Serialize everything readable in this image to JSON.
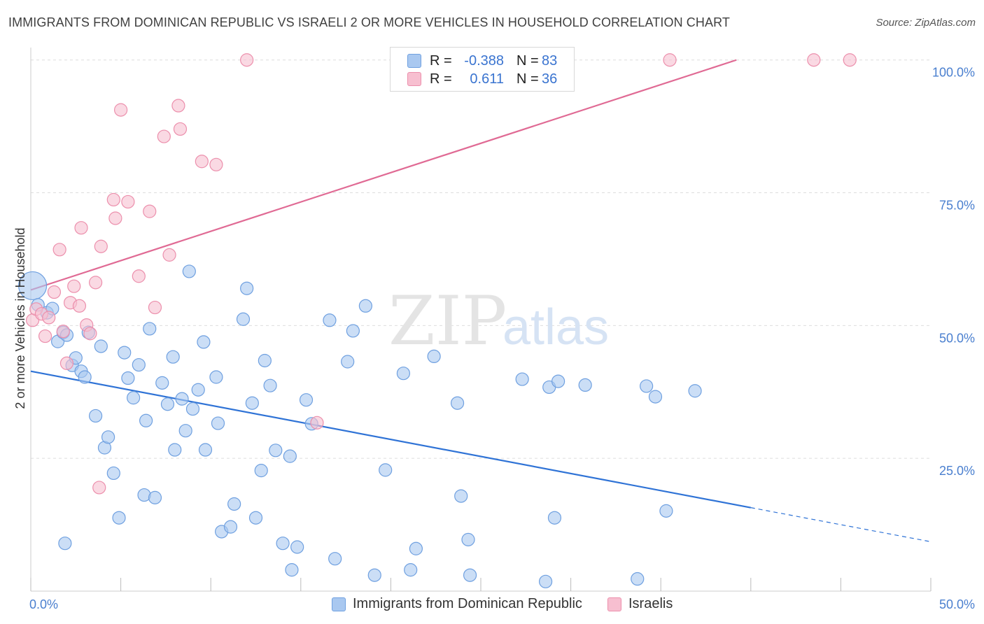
{
  "title": "IMMIGRANTS FROM DOMINICAN REPUBLIC VS ISRAELI 2 OR MORE VEHICLES IN HOUSEHOLD CORRELATION CHART",
  "source": "Source: ZipAtlas.com",
  "watermark": {
    "zip": "ZIP",
    "atlas": "atlas"
  },
  "legend": {
    "rows": [
      {
        "r_label": "R =",
        "r_value": "-0.388",
        "n_label": "N =",
        "n_value": "83",
        "color": "#a9c8f0",
        "border": "#6fa0e0"
      },
      {
        "r_label": "R =",
        "r_value": "0.611",
        "n_label": "N =",
        "n_value": "36",
        "color": "#f7bfd0",
        "border": "#ec8fac"
      }
    ]
  },
  "bottom_legend": [
    {
      "label": "Immigrants from Dominican Republic",
      "color": "#a9c8f0",
      "border": "#6fa0e0"
    },
    {
      "label": "Israelis",
      "color": "#f7bfd0",
      "border": "#ec8fac"
    }
  ],
  "chart_data": {
    "type": "scatter",
    "title": "IMMIGRANTS FROM DOMINICAN REPUBLIC VS ISRAELI 2 OR MORE VEHICLES IN HOUSEHOLD CORRELATION CHART",
    "xlabel": "",
    "ylabel": "2 or more Vehicles in Household",
    "xlim": [
      0,
      50
    ],
    "ylim": [
      0,
      100
    ],
    "x_tick_labels": [
      "0.0%",
      "50.0%"
    ],
    "y_tick_labels": [
      "100.0%",
      "75.0%",
      "50.0%",
      "25.0%"
    ],
    "y_tick_values": [
      100,
      75,
      50,
      25
    ],
    "grid": true,
    "legend_position": "top-center",
    "series": [
      {
        "name": "Immigrants from Dominican Republic",
        "color": "#6fa0e0",
        "fill": "#a9c8f0",
        "points": [
          [
            0.1,
            57.5
          ],
          [
            0.4,
            53.9
          ],
          [
            0.9,
            52.4
          ],
          [
            1.2,
            53.2
          ],
          [
            1.5,
            47.0
          ],
          [
            1.8,
            48.7
          ],
          [
            2.0,
            48.2
          ],
          [
            2.3,
            42.5
          ],
          [
            2.5,
            43.9
          ],
          [
            2.8,
            41.4
          ],
          [
            3.0,
            40.3
          ],
          [
            3.2,
            48.7
          ],
          [
            3.6,
            33.0
          ],
          [
            3.9,
            46.1
          ],
          [
            4.1,
            27.0
          ],
          [
            4.3,
            29.0
          ],
          [
            4.6,
            22.2
          ],
          [
            4.9,
            13.8
          ],
          [
            5.2,
            44.9
          ],
          [
            5.4,
            40.1
          ],
          [
            5.7,
            36.4
          ],
          [
            6.0,
            42.6
          ],
          [
            6.3,
            18.1
          ],
          [
            6.4,
            32.1
          ],
          [
            6.6,
            49.4
          ],
          [
            6.9,
            17.6
          ],
          [
            7.3,
            39.2
          ],
          [
            7.6,
            35.2
          ],
          [
            7.9,
            44.1
          ],
          [
            8.0,
            26.6
          ],
          [
            8.4,
            36.2
          ],
          [
            8.6,
            30.2
          ],
          [
            8.8,
            60.2
          ],
          [
            9.0,
            34.3
          ],
          [
            9.3,
            37.9
          ],
          [
            9.6,
            46.9
          ],
          [
            9.7,
            26.6
          ],
          [
            10.3,
            40.3
          ],
          [
            10.6,
            11.2
          ],
          [
            11.1,
            12.1
          ],
          [
            11.3,
            16.4
          ],
          [
            11.8,
            51.2
          ],
          [
            12.0,
            57.0
          ],
          [
            12.3,
            35.4
          ],
          [
            12.5,
            13.8
          ],
          [
            12.8,
            22.7
          ],
          [
            13.0,
            43.4
          ],
          [
            13.3,
            38.7
          ],
          [
            13.6,
            26.5
          ],
          [
            14.0,
            9.0
          ],
          [
            14.4,
            25.4
          ],
          [
            14.5,
            4.0
          ],
          [
            14.8,
            8.3
          ],
          [
            15.6,
            31.5
          ],
          [
            16.6,
            51.0
          ],
          [
            16.9,
            6.1
          ],
          [
            17.6,
            43.2
          ],
          [
            17.9,
            49.0
          ],
          [
            18.6,
            53.7
          ],
          [
            19.1,
            3.0
          ],
          [
            19.7,
            22.8
          ],
          [
            20.7,
            41.0
          ],
          [
            21.1,
            4.0
          ],
          [
            21.4,
            8.0
          ],
          [
            22.4,
            44.2
          ],
          [
            23.7,
            35.4
          ],
          [
            23.9,
            17.9
          ],
          [
            24.3,
            9.7
          ],
          [
            24.4,
            3.0
          ],
          [
            27.3,
            39.9
          ],
          [
            28.6,
            1.8
          ],
          [
            28.8,
            38.4
          ],
          [
            29.1,
            13.8
          ],
          [
            29.3,
            39.5
          ],
          [
            30.8,
            38.8
          ],
          [
            33.7,
            2.3
          ],
          [
            34.2,
            38.6
          ],
          [
            34.7,
            36.6
          ],
          [
            35.3,
            15.1
          ],
          [
            36.9,
            37.7
          ],
          [
            1.9,
            9.0
          ],
          [
            10.4,
            31.6
          ],
          [
            15.3,
            36.0
          ]
        ],
        "trend": {
          "x_start": 0,
          "y_start": 41.4,
          "x_solid_end": 40.0,
          "x_end": 50.0,
          "y_end": 9.3
        }
      },
      {
        "name": "Israelis",
        "color": "#ec8fac",
        "fill": "#f7bfd0",
        "points": [
          [
            0.1,
            51.0
          ],
          [
            0.3,
            53.1
          ],
          [
            0.6,
            52.2
          ],
          [
            0.8,
            48.0
          ],
          [
            1.0,
            51.5
          ],
          [
            1.3,
            56.3
          ],
          [
            1.6,
            64.3
          ],
          [
            1.8,
            48.9
          ],
          [
            2.0,
            42.9
          ],
          [
            2.2,
            54.3
          ],
          [
            2.4,
            57.4
          ],
          [
            2.7,
            53.7
          ],
          [
            2.8,
            68.4
          ],
          [
            3.1,
            50.1
          ],
          [
            3.3,
            48.5
          ],
          [
            3.6,
            58.1
          ],
          [
            3.8,
            19.5
          ],
          [
            3.9,
            64.9
          ],
          [
            4.6,
            73.7
          ],
          [
            4.7,
            70.2
          ],
          [
            5.0,
            90.6
          ],
          [
            5.4,
            73.3
          ],
          [
            6.0,
            59.3
          ],
          [
            6.6,
            71.5
          ],
          [
            6.9,
            53.4
          ],
          [
            7.4,
            85.6
          ],
          [
            7.7,
            63.3
          ],
          [
            8.2,
            91.4
          ],
          [
            8.3,
            87.0
          ],
          [
            9.5,
            80.9
          ],
          [
            10.3,
            80.3
          ],
          [
            15.9,
            31.7
          ],
          [
            12.0,
            100.0
          ],
          [
            35.5,
            100.0
          ],
          [
            43.5,
            100.0
          ],
          [
            45.5,
            100.0
          ]
        ],
        "trend": {
          "x_start": 0,
          "y_start": 56.7,
          "x_solid_end": 39.2,
          "x_end": 39.2,
          "y_end": 100.0
        }
      }
    ]
  }
}
